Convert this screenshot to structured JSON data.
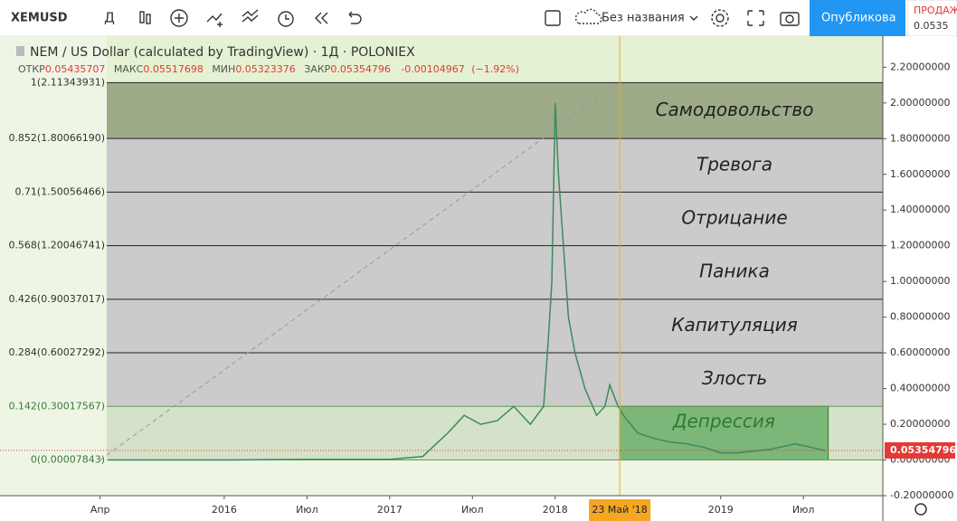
{
  "toolbar": {
    "symbol": "XEMUSD",
    "interval": "Д",
    "layout_name": "Без названия",
    "publish": "Опубликова",
    "sell_label": "ПРОДАЖ",
    "sell_price": "0.0535"
  },
  "legend": {
    "title": "NEM / US Dollar (calculated by TradingView) · 1Д · POLONIEX",
    "ohlc": [
      {
        "label": "ОТКР",
        "value": 0.05435707
      },
      {
        "label": "МАКС",
        "value": 0.05517698
      },
      {
        "label": "МИН",
        "value": 0.05323376
      },
      {
        "label": "ЗАКР",
        "value": 0.05354796
      }
    ],
    "change": -0.00104967,
    "change_pct": "(−1.92%)"
  },
  "chart_data": {
    "type": "line",
    "color": "#3d8a5c",
    "x": [
      2015.3,
      2016.0,
      2016.5,
      2017.0,
      2017.2,
      2017.35,
      2017.45,
      2017.55,
      2017.65,
      2017.75,
      2017.85,
      2017.93,
      2017.96,
      2017.98,
      2018.0,
      2018.02,
      2018.05,
      2018.08,
      2018.12,
      2018.18,
      2018.25,
      2018.3,
      2018.33,
      2018.38,
      2018.42,
      2018.5,
      2018.6,
      2018.7,
      2018.8,
      2018.9,
      2019.0,
      2019.1,
      2019.2,
      2019.3,
      2019.45,
      2019.55,
      2019.63
    ],
    "values": [
      0.0002,
      0.0001,
      0.003,
      0.003,
      0.02,
      0.15,
      0.25,
      0.2,
      0.22,
      0.3,
      0.2,
      0.3,
      0.7,
      1.0,
      2.0,
      1.6,
      1.2,
      0.8,
      0.6,
      0.4,
      0.25,
      0.3,
      0.42,
      0.3,
      0.24,
      0.15,
      0.12,
      0.1,
      0.09,
      0.07,
      0.04,
      0.04,
      0.05,
      0.06,
      0.09,
      0.07,
      0.05354796
    ],
    "xlim": [
      2014.645,
      2019.98
    ],
    "ylim": [
      -0.2,
      2.374
    ],
    "xticks": [
      {
        "value": 2015.25,
        "label": "Апр"
      },
      2016,
      {
        "value": 2016.5,
        "label": "Июл"
      },
      2017,
      {
        "value": 2017.5,
        "label": "Июл"
      },
      2018,
      2019,
      {
        "value": 2019.5,
        "label": "Июл"
      }
    ],
    "yticks": [
      {
        "value": 2.2,
        "label": "2.20000000"
      },
      {
        "value": 2.0,
        "label": "2.00000000"
      },
      {
        "value": 1.8,
        "label": "1.80000000"
      },
      {
        "value": 1.6,
        "label": "1.60000000"
      },
      {
        "value": 1.4,
        "label": "1.40000000"
      },
      {
        "value": 1.2,
        "label": "1.20000000"
      },
      {
        "value": 1.0,
        "label": "1.00000000"
      },
      {
        "value": 0.8,
        "label": "0.80000000"
      },
      {
        "value": 0.6,
        "label": "0.60000000"
      },
      {
        "value": 0.4,
        "label": "0.40000000"
      },
      {
        "value": 0.2,
        "label": "0.20000000"
      },
      {
        "value": 0,
        "label": "0.00000000"
      },
      {
        "value": -0.2,
        "label": "-0.20000000"
      }
    ],
    "fib_levels": [
      {
        "value": 2.11343931,
        "label": "1(2.11343931)"
      },
      {
        "value": 1.8006619,
        "label": "0.852(1.80066190)"
      },
      {
        "value": 1.50056466,
        "label": "0.71(1.50056466)"
      },
      {
        "value": 1.20046741,
        "label": "0.568(1.20046741)"
      },
      {
        "value": 0.90037017,
        "label": "0.426(0.90037017)"
      },
      {
        "value": 0.60027292,
        "label": "0.284(0.60027292)"
      },
      {
        "value": 0.30017567,
        "label": "0.142(0.30017567)"
      },
      {
        "value": 7.843e-05,
        "label": "0(0.00007843)"
      }
    ],
    "zones": [
      {
        "name": "Самодовольство",
        "color": "#9dab88"
      },
      {
        "name": "Тревога",
        "color": "#cbcbcb"
      },
      {
        "name": "Отрицание",
        "color": "#cbcbcb"
      },
      {
        "name": "Паника",
        "color": "#cbcbcb"
      },
      {
        "name": "Капитуляция",
        "color": "#cbcbcb"
      },
      {
        "name": "Злость",
        "color": "#cbcbcb"
      },
      {
        "name": "Депрессия",
        "color": "#d3e2c8"
      }
    ],
    "depression_box": {
      "x": [
        2018.39,
        2019.65
      ],
      "y": [
        0,
        0.30017567
      ],
      "color": "#5fa85f"
    },
    "trend_line": {
      "x": [
        2015.25,
        2018.39
      ],
      "y": [
        7.843e-05,
        2.11343931
      ]
    },
    "crosshair": {
      "x": 2018.39,
      "label": "23 Май '18"
    },
    "last_price": 0.05354796
  }
}
